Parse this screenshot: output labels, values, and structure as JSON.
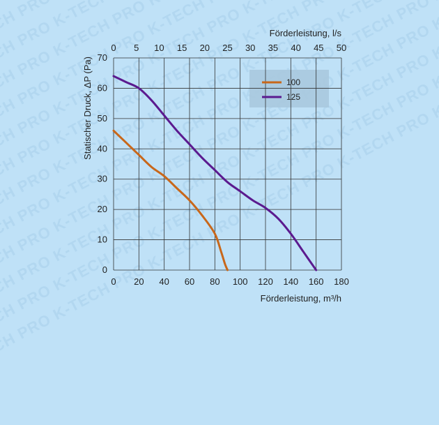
{
  "watermark": "K-TECH PRO",
  "chart_data": {
    "type": "line",
    "ylabel": "Statischer Druck, ΔP (Pa)",
    "xlabel_bottom": "Förderleistung, m³/h",
    "xlabel_top": "Förderleistung, l/s",
    "x_ticks_bottom": [
      "0",
      "20",
      "40",
      "60",
      "80",
      "100",
      "120",
      "140",
      "160",
      "180"
    ],
    "x_ticks_top": [
      "0",
      "5",
      "10",
      "15",
      "20",
      "25",
      "30",
      "35",
      "40",
      "45",
      "50"
    ],
    "y_ticks": [
      "0",
      "10",
      "20",
      "30",
      "40",
      "50",
      "60",
      "70"
    ],
    "xlim": [
      0,
      180
    ],
    "ylim": [
      0,
      70
    ],
    "top_xlim": [
      0,
      50
    ],
    "grid": true,
    "legend_position": "top-right",
    "series": [
      {
        "name": "100",
        "color": "#c8671a",
        "points": [
          [
            0,
            46
          ],
          [
            10,
            42
          ],
          [
            20,
            38
          ],
          [
            30,
            34
          ],
          [
            40,
            31
          ],
          [
            50,
            27
          ],
          [
            60,
            23
          ],
          [
            70,
            18
          ],
          [
            80,
            12
          ],
          [
            85,
            6
          ],
          [
            88,
            2
          ],
          [
            90,
            0
          ]
        ]
      },
      {
        "name": "125",
        "color": "#5b1a8f",
        "points": [
          [
            0,
            64
          ],
          [
            10,
            62
          ],
          [
            20,
            60
          ],
          [
            30,
            56
          ],
          [
            40,
            51
          ],
          [
            50,
            46
          ],
          [
            60,
            41.5
          ],
          [
            70,
            37
          ],
          [
            80,
            33
          ],
          [
            90,
            29
          ],
          [
            100,
            26
          ],
          [
            110,
            23
          ],
          [
            120,
            20.5
          ],
          [
            130,
            17
          ],
          [
            140,
            12
          ],
          [
            150,
            6
          ],
          [
            160,
            0
          ]
        ]
      }
    ]
  }
}
